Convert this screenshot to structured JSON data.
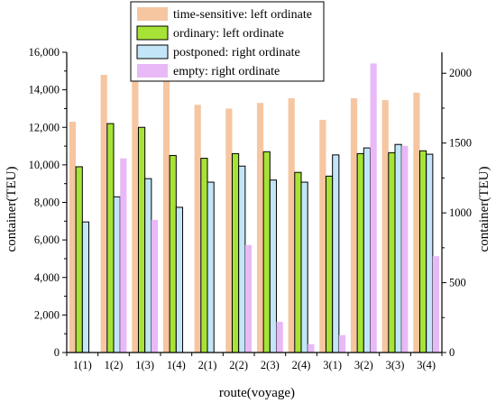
{
  "chart_data": {
    "type": "bar",
    "xlabel": "route(voyage)",
    "ylabel_left": "container(TEU)",
    "ylabel_right": "container(TEU)",
    "categories": [
      "1(1)",
      "1(2)",
      "1(3)",
      "1(4)",
      "2(1)",
      "2(2)",
      "2(3)",
      "2(4)",
      "3(1)",
      "3(2)",
      "3(3)",
      "3(4)"
    ],
    "ylim_left": [
      0,
      16000
    ],
    "yticks_left": [
      0,
      2000,
      4000,
      6000,
      8000,
      10000,
      12000,
      14000,
      16000
    ],
    "ytick_labels_left": [
      "0",
      "2,000",
      "4,000",
      "6,000",
      "8,000",
      "10,000",
      "12,000",
      "14,000",
      "16,000"
    ],
    "ylim_right": [
      0,
      2150
    ],
    "yticks_right": [
      0,
      500,
      1000,
      1500,
      2000
    ],
    "ytick_labels_right": [
      "0",
      "500",
      "1000",
      "1500",
      "2000"
    ],
    "legend_position": "top-center",
    "series": [
      {
        "name": "time-sensitive: left ordinate",
        "axis": "left",
        "color": "#f6c6a1",
        "edge": "none",
        "values": [
          12300,
          14800,
          15400,
          15100,
          13200,
          13000,
          13300,
          13550,
          12400,
          13550,
          13450,
          13850
        ]
      },
      {
        "name": "ordinary: left ordinate",
        "axis": "left",
        "color": "#a6e336",
        "edge": "#000000",
        "values": [
          9900,
          12200,
          12000,
          10500,
          10350,
          10600,
          10700,
          9600,
          9400,
          10600,
          10650,
          10750
        ]
      },
      {
        "name": "postponed: right ordinate",
        "axis": "right",
        "color": "#c2e6f8",
        "edge": "#000000",
        "values": [
          935,
          1115,
          1245,
          1040,
          1220,
          1335,
          1235,
          1220,
          1415,
          1465,
          1490,
          1420
        ]
      },
      {
        "name": "empty: right ordinate",
        "axis": "right",
        "color": "#e8b9f6",
        "edge": "none",
        "values": [
          0,
          1390,
          950,
          0,
          0,
          770,
          220,
          60,
          125,
          2070,
          1480,
          690
        ]
      }
    ]
  }
}
